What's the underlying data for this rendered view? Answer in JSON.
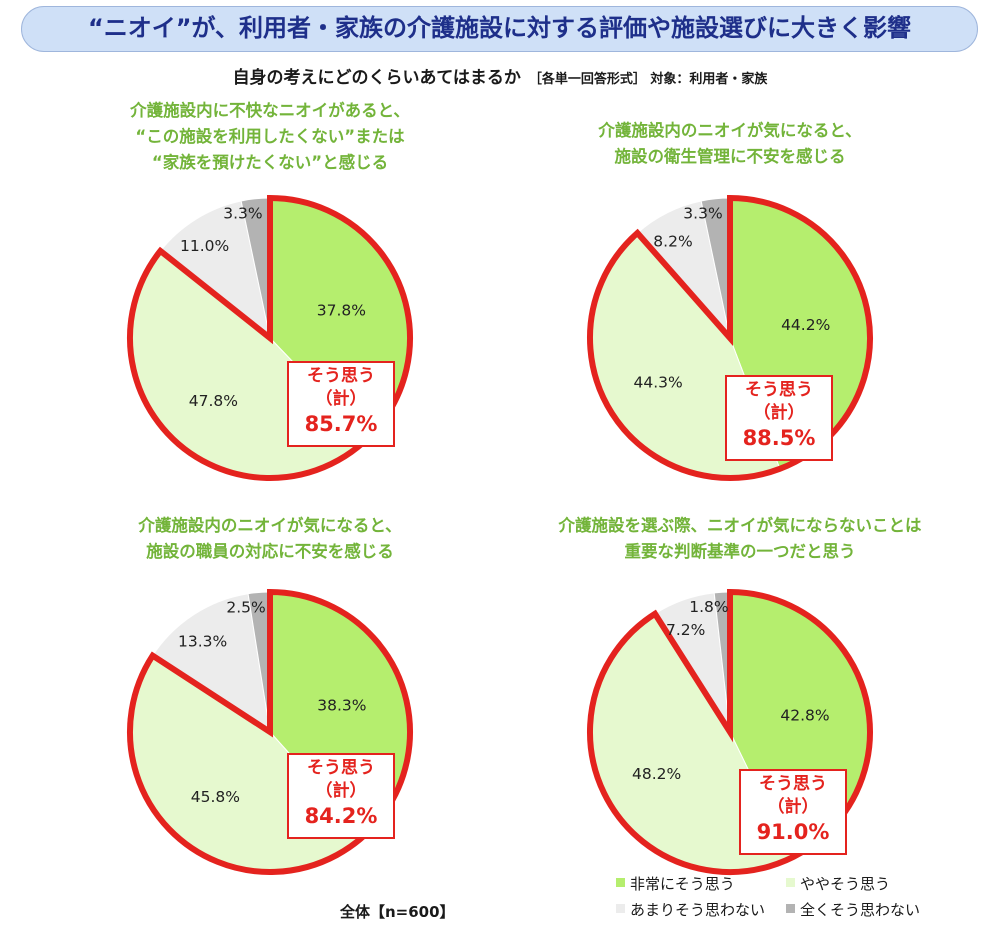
{
  "title": "“ニオイ”が、利用者・家族の介護施設に対する評価や施設選びに大きく影響",
  "subtitle": "自身の考えにどのくらいあてはまるか",
  "subtitle_note": "［各単一回答形式］ 対象：利用者・家族",
  "sample": "全体【n=600】",
  "colors": {
    "strong": "#b5ee6e",
    "somewhat": "#e6f9cf",
    "not_much": "#ececec",
    "not_at_all": "#b3b3b3",
    "outline": "#e4231e",
    "title_green": "#73b43a"
  },
  "legend": [
    "非常にそう思う",
    "ややそう思う",
    "あまりそう思わない",
    "全くそう思わない"
  ],
  "chart_data": [
    {
      "type": "pie",
      "title": [
        "介護施設内に不快なニオイがあると、",
        "“この施設を利用したくない”または",
        "“家族を預けたくない”と感じる"
      ],
      "categories": [
        "非常にそう思う",
        "ややそう思う",
        "あまりそう思わない",
        "全くそう思わない"
      ],
      "values": [
        37.8,
        47.8,
        11.0,
        3.3
      ],
      "labels": [
        "37.8%",
        "47.8%",
        "11.0%",
        "3.3%"
      ],
      "sum_label": [
        "そう思う",
        "（計）",
        "85.7%"
      ]
    },
    {
      "type": "pie",
      "title": [
        "介護施設内のニオイが気になると、",
        "施設の衛生管理に不安を感じる"
      ],
      "categories": [
        "非常にそう思う",
        "ややそう思う",
        "あまりそう思わない",
        "全くそう思わない"
      ],
      "values": [
        44.2,
        44.3,
        8.2,
        3.3
      ],
      "labels": [
        "44.2%",
        "44.3%",
        "8.2%",
        "3.3%"
      ],
      "sum_label": [
        "そう思う",
        "（計）",
        "88.5%"
      ]
    },
    {
      "type": "pie",
      "title": [
        "介護施設内のニオイが気になると、",
        "施設の職員の対応に不安を感じる"
      ],
      "categories": [
        "非常にそう思う",
        "ややそう思う",
        "あまりそう思わない",
        "全くそう思わない"
      ],
      "values": [
        38.3,
        45.8,
        13.3,
        2.5
      ],
      "labels": [
        "38.3%",
        "45.8%",
        "13.3%",
        "2.5%"
      ],
      "sum_label": [
        "そう思う",
        "（計）",
        "84.2%"
      ]
    },
    {
      "type": "pie",
      "title": [
        "介護施設を選ぶ際、ニオイが気にならないことは",
        "重要な判断基準の一つだと思う"
      ],
      "categories": [
        "非常にそう思う",
        "ややそう思う",
        "あまりそう思わない",
        "全くそう思わない"
      ],
      "values": [
        42.8,
        48.2,
        7.2,
        1.8
      ],
      "labels": [
        "42.8%",
        "48.2%",
        "7.2%",
        "1.8%"
      ],
      "sum_label": [
        "そう思う",
        "（計）",
        "91.0%"
      ]
    }
  ]
}
